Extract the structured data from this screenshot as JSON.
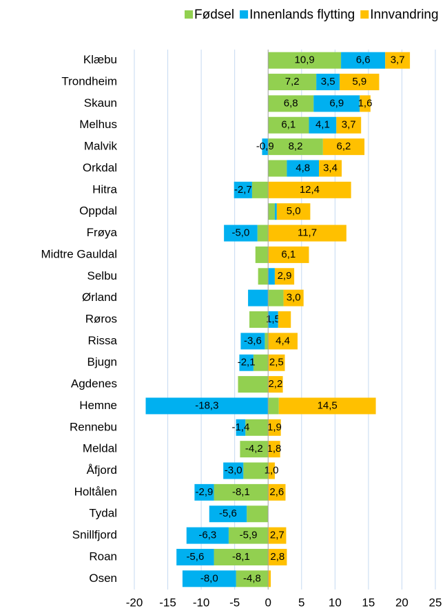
{
  "chart_data": {
    "type": "bar",
    "orientation": "horizontal",
    "stacked": true,
    "categories": [
      "Klæbu",
      "Trondheim",
      "Skaun",
      "Melhus",
      "Malvik",
      "Orkdal",
      "Hitra",
      "Oppdal",
      "Frøya",
      "Midtre Gauldal",
      "Selbu",
      "Ørland",
      "Røros",
      "Rissa",
      "Bjugn",
      "Agdenes",
      "Hemne",
      "Rennebu",
      "Meldal",
      "Åfjord",
      "Holtålen",
      "Tydal",
      "Snillfjord",
      "Roan",
      "Osen"
    ],
    "series": [
      {
        "name": "Fødsel",
        "color": "#92d050",
        "values": [
          10.9,
          7.2,
          6.8,
          6.1,
          8.2,
          2.8,
          -2.4,
          1.0,
          -1.6,
          -1.9,
          -1.5,
          2.3,
          -2.8,
          -0.5,
          -2.2,
          -4.5,
          1.6,
          -3.4,
          -4.2,
          -3.7,
          -8.1,
          -3.2,
          -5.9,
          -8.1,
          -4.8
        ],
        "value_labels": [
          "10,9",
          "7,2",
          "6,8",
          "6,1",
          "8,2",
          null,
          null,
          null,
          null,
          null,
          null,
          null,
          null,
          null,
          null,
          null,
          null,
          null,
          "-4,2",
          null,
          "-8,1",
          null,
          "-5,9",
          "-8,1",
          "-4,8"
        ]
      },
      {
        "name": "Innenlands flytting",
        "color": "#00b0f0",
        "values": [
          6.6,
          3.5,
          6.9,
          4.1,
          -0.9,
          4.8,
          -2.7,
          0.3,
          -5.0,
          0,
          1.0,
          -3.0,
          1.5,
          -3.6,
          -2.1,
          0,
          -18.3,
          -1.4,
          0,
          -3.0,
          -2.9,
          -5.6,
          -6.3,
          -5.6,
          -8.0
        ],
        "value_labels": [
          "6,6",
          "3,5",
          "6,9",
          "4,1",
          "-0,9",
          "4,8",
          "-2,7",
          null,
          "-5,0",
          null,
          null,
          null,
          "1,5",
          "-3,6",
          "-2,1",
          null,
          "-18,3",
          "-1,4",
          null,
          "-3,0",
          "-2,9",
          "-5,6",
          "-6,3",
          "-5,6",
          "-8,0"
        ]
      },
      {
        "name": "Innvandring",
        "color": "#ffc000",
        "values": [
          3.7,
          5.9,
          1.6,
          3.7,
          6.2,
          3.4,
          12.4,
          5.0,
          11.7,
          6.1,
          2.9,
          3.0,
          1.9,
          4.4,
          2.5,
          2.2,
          14.5,
          1.9,
          1.8,
          1.0,
          2.6,
          0,
          2.7,
          2.8,
          0.4
        ],
        "value_labels": [
          "3,7",
          "5,9",
          "1,6",
          "3,7",
          "6,2",
          "3,4",
          "12,4",
          "5,0",
          "11,7",
          "6,1",
          "2,9",
          "3,0",
          null,
          "4,4",
          "2,5",
          "2,2",
          "14,5",
          "1,9",
          "1,8",
          "1,0",
          "2,6",
          null,
          "2,7",
          "2,8",
          null
        ]
      }
    ],
    "xlim": [
      -20,
      25
    ],
    "xticks": [
      -20,
      -15,
      -10,
      -5,
      0,
      5,
      10,
      15,
      20,
      25
    ],
    "grid": true,
    "legend": "top"
  }
}
